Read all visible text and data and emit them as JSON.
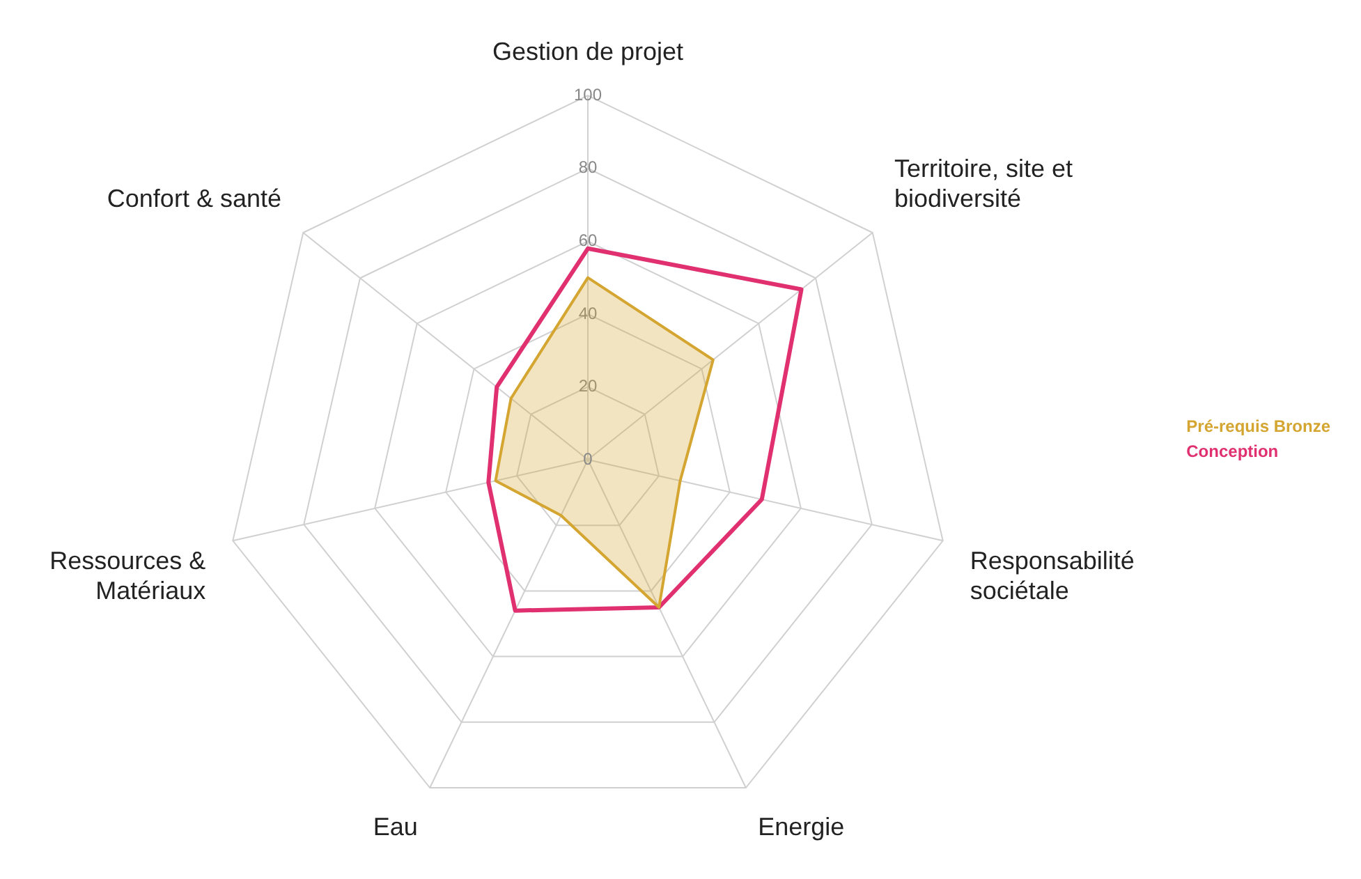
{
  "chart_data": {
    "type": "radar",
    "categories": [
      "Gestion de projet",
      "Territoire, site et biodiversité",
      "Responsabilité sociétale",
      "Energie",
      "Eau",
      "Ressources & Matériaux",
      "Confort & santé"
    ],
    "series": [
      {
        "name": "Pré-requis Bronze",
        "color": "#d4a530",
        "values": [
          50,
          44,
          26,
          45,
          17,
          26,
          27
        ]
      },
      {
        "name": "Conception",
        "color": "#e0306f",
        "values": [
          58,
          75,
          49,
          45,
          46,
          28,
          32
        ]
      }
    ],
    "ylim": [
      0,
      100
    ],
    "yticks": [
      0,
      20,
      40,
      60,
      80,
      100
    ],
    "grid": true,
    "legend": "right",
    "marker": "none"
  }
}
